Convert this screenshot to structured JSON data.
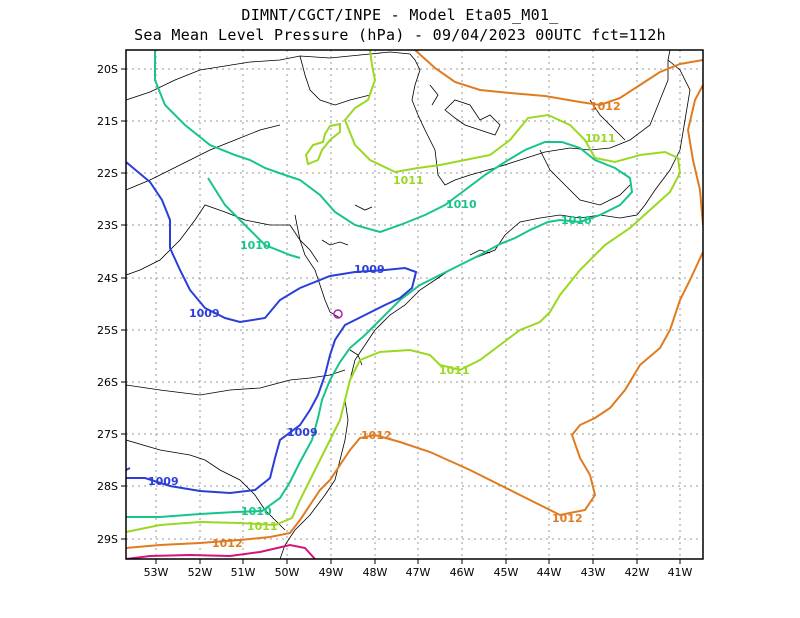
{
  "header": {
    "line1": "DIMNT/CGCT/INPE -  Model Eta05_M01_",
    "line2": "Sea Mean Level Pressure (hPa) - 09/04/2023 00UTC fct=112h"
  },
  "axes": {
    "lat_ticks": [
      "20S",
      "21S",
      "22S",
      "23S",
      "24S",
      "25S",
      "26S",
      "27S",
      "28S",
      "29S"
    ],
    "lon_ticks": [
      "53W",
      "52W",
      "51W",
      "50W",
      "49W",
      "48W",
      "47W",
      "46W",
      "45W",
      "44W",
      "43W",
      "42W",
      "41W"
    ]
  },
  "contour_labels": [
    {
      "text": "1012",
      "color": "#e07b20"
    },
    {
      "text": "1011",
      "color": "#9ad822"
    },
    {
      "text": "1011",
      "color": "#9ad822"
    },
    {
      "text": "1010",
      "color": "#17c48a"
    },
    {
      "text": "1010",
      "color": "#17c48a"
    },
    {
      "text": "1010",
      "color": "#17c48a"
    },
    {
      "text": "1009",
      "color": "#2a3fd9"
    },
    {
      "text": "1009",
      "color": "#2a3fd9"
    },
    {
      "text": "1011",
      "color": "#9ad822"
    },
    {
      "text": "1009",
      "color": "#2a3fd9"
    },
    {
      "text": "1012",
      "color": "#e07b20"
    },
    {
      "text": "1009",
      "color": "#2a3fd9"
    },
    {
      "text": "1010",
      "color": "#17c48a"
    },
    {
      "text": "1011",
      "color": "#9ad822"
    },
    {
      "text": "1012",
      "color": "#e07b20"
    },
    {
      "text": "1012",
      "color": "#e07b20"
    }
  ],
  "colors": {
    "c1009": "#2a3fd9",
    "c1010": "#17c48a",
    "c1011": "#9ad822",
    "c1012": "#e07b20",
    "c1013": "#d4147a",
    "low_marker": "#b020b0"
  }
}
